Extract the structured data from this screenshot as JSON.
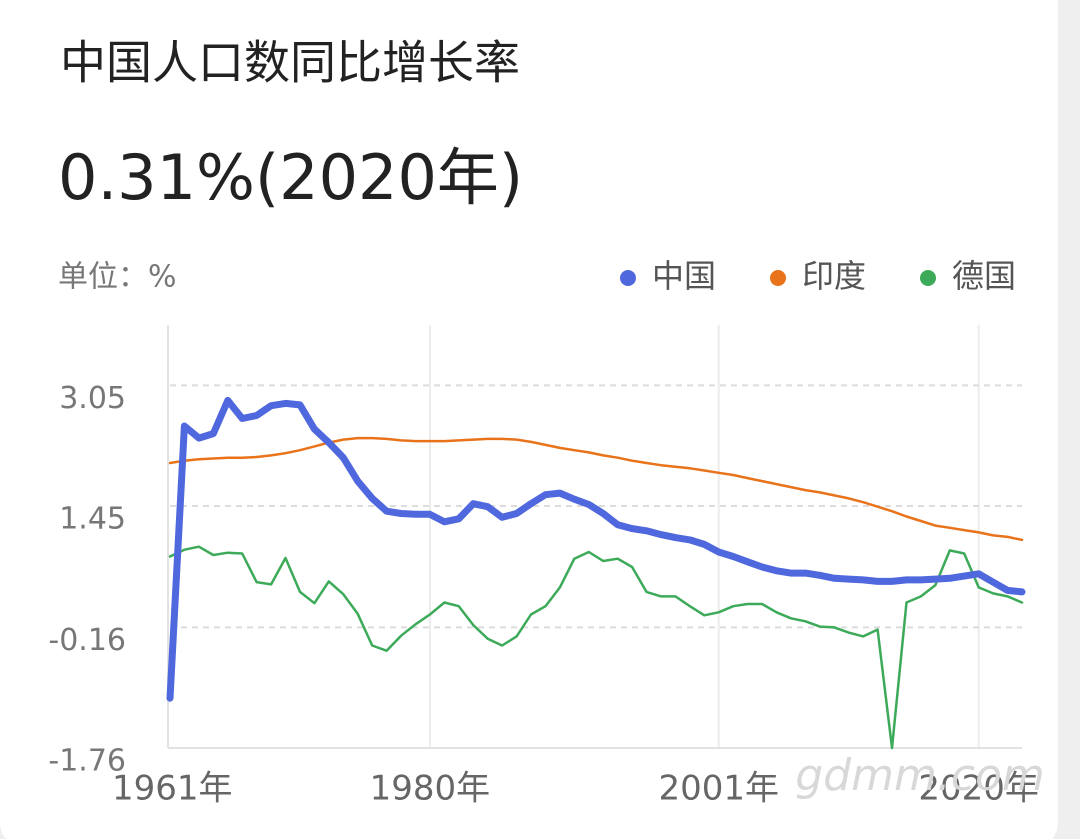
{
  "chart_data": {
    "type": "line",
    "title": "中国人口数同比增长率",
    "subtitle": "0.31%(2020年)",
    "unit_label": "单位：%",
    "watermark": "gdmm.com",
    "categories": [
      "1961年",
      null,
      null,
      null,
      null,
      null,
      null,
      null,
      null,
      null,
      null,
      null,
      null,
      null,
      null,
      null,
      null,
      null,
      "1980年",
      null,
      null,
      null,
      null,
      null,
      null,
      null,
      null,
      null,
      null,
      null,
      null,
      null,
      null,
      null,
      null,
      null,
      null,
      null,
      "2001年",
      null,
      null,
      null,
      null,
      null,
      null,
      null,
      null,
      null,
      null,
      null,
      null,
      null,
      null,
      null,
      null,
      null,
      "2020年",
      null,
      null,
      null
    ],
    "ylim": [
      -1.76,
      3.85
    ],
    "yticks": [
      -1.76,
      -0.16,
      1.45,
      3.05
    ],
    "grid": true,
    "legend": "top-right",
    "series": [
      {
        "name": "中国",
        "color": "#4f68dd",
        "values": [
          -1.1,
          2.51,
          2.35,
          2.41,
          2.85,
          2.61,
          2.65,
          2.78,
          2.81,
          2.79,
          2.47,
          2.29,
          2.09,
          1.78,
          1.55,
          1.38,
          1.35,
          1.34,
          1.34,
          1.24,
          1.28,
          1.48,
          1.44,
          1.3,
          1.35,
          1.48,
          1.6,
          1.62,
          1.54,
          1.47,
          1.35,
          1.2,
          1.15,
          1.12,
          1.07,
          1.03,
          1.0,
          0.94,
          0.84,
          0.78,
          0.71,
          0.64,
          0.59,
          0.56,
          0.56,
          0.53,
          0.49,
          0.48,
          0.47,
          0.45,
          0.45,
          0.47,
          0.47,
          0.48,
          0.49,
          0.52,
          0.55,
          0.44,
          0.33,
          0.31
        ]
      },
      {
        "name": "印度",
        "color": "#e8731a",
        "values": [
          2.02,
          2.05,
          2.07,
          2.08,
          2.09,
          2.09,
          2.1,
          2.12,
          2.15,
          2.19,
          2.24,
          2.29,
          2.33,
          2.35,
          2.35,
          2.34,
          2.32,
          2.31,
          2.31,
          2.31,
          2.32,
          2.33,
          2.34,
          2.34,
          2.33,
          2.3,
          2.26,
          2.22,
          2.19,
          2.16,
          2.12,
          2.09,
          2.05,
          2.02,
          1.99,
          1.97,
          1.95,
          1.92,
          1.89,
          1.86,
          1.82,
          1.78,
          1.74,
          1.7,
          1.66,
          1.63,
          1.59,
          1.55,
          1.5,
          1.44,
          1.38,
          1.31,
          1.25,
          1.19,
          1.16,
          1.13,
          1.1,
          1.06,
          1.04,
          1.0
        ]
      },
      {
        "name": "德国",
        "color": "#3daa5a",
        "values": [
          0.78,
          0.87,
          0.91,
          0.8,
          0.83,
          0.82,
          0.44,
          0.41,
          0.76,
          0.31,
          0.16,
          0.45,
          0.28,
          0.02,
          -0.4,
          -0.47,
          -0.27,
          -0.12,
          0.01,
          0.17,
          0.12,
          -0.13,
          -0.31,
          -0.4,
          -0.28,
          0.01,
          0.12,
          0.37,
          0.75,
          0.84,
          0.72,
          0.75,
          0.64,
          0.31,
          0.25,
          0.25,
          0.12,
          0.0,
          0.04,
          0.12,
          0.15,
          0.15,
          0.04,
          -0.04,
          -0.08,
          -0.15,
          -0.16,
          -0.23,
          -0.28,
          -0.19,
          -1.76,
          0.17,
          0.25,
          0.4,
          0.86,
          0.82,
          0.37,
          0.29,
          0.25,
          0.17
        ]
      }
    ]
  }
}
